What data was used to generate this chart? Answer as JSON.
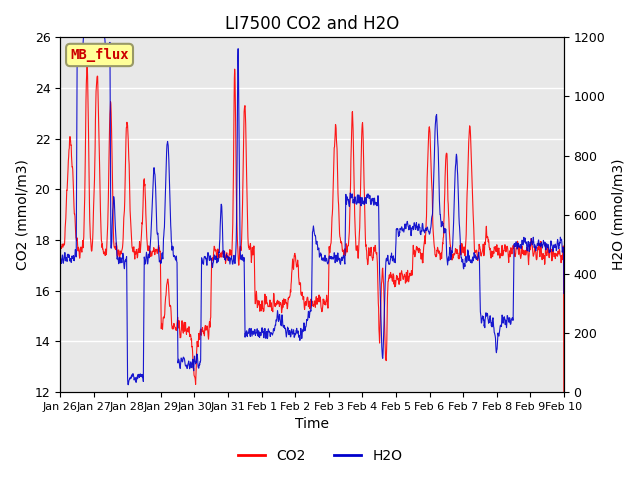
{
  "title": "LI7500 CO2 and H2O",
  "xlabel": "Time",
  "ylabel_left": "CO2 (mmol/m3)",
  "ylabel_right": "H2O (mmol/m3)",
  "co2_color": "#FF0000",
  "h2o_color": "#0000CC",
  "ylim_left": [
    12,
    26
  ],
  "ylim_right": [
    0,
    1200
  ],
  "yticks_left": [
    12,
    14,
    16,
    18,
    20,
    22,
    24,
    26
  ],
  "yticks_right": [
    0,
    200,
    400,
    600,
    800,
    1000,
    1200
  ],
  "xtick_labels": [
    "Jan 26",
    "Jan 27",
    "Jan 28",
    "Jan 29",
    "Jan 30",
    "Jan 31",
    "Feb 1",
    "Feb 2",
    "Feb 3",
    "Feb 4",
    "Feb 5",
    "Feb 6",
    "Feb 7",
    "Feb 8",
    "Feb 9",
    "Feb 10"
  ],
  "watermark_text": "MB_flux",
  "watermark_bg": "#FFFF99",
  "watermark_border": "#999966",
  "watermark_textcolor": "#CC0000",
  "background_color": "#E8E8E8",
  "grid_color": "#FFFFFF",
  "legend_co2": "CO2",
  "legend_h2o": "H2O",
  "title_fontsize": 12,
  "axis_fontsize": 10,
  "tick_fontsize": 9,
  "legend_fontsize": 10
}
